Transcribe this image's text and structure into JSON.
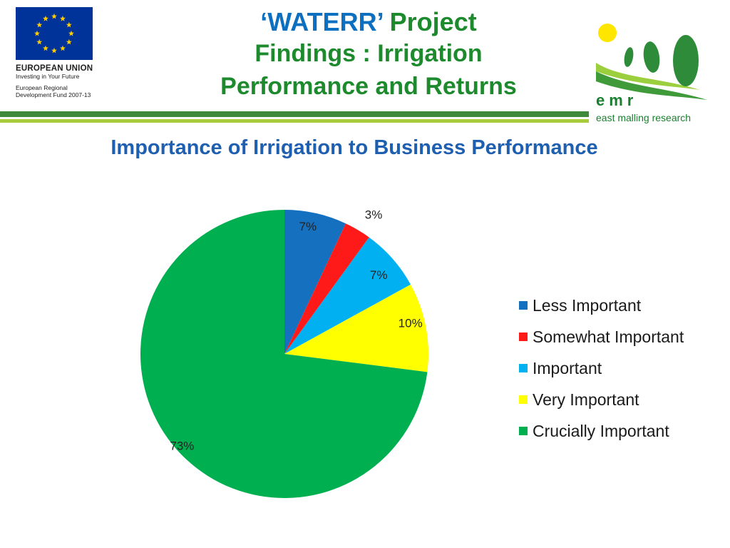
{
  "header": {
    "title_quote": "‘WATERR’",
    "title_word": "Project",
    "subtitle_line1": "Findings : Irrigation",
    "subtitle_line2": "Performance and Returns"
  },
  "eu_logo": {
    "name": "EUROPEAN UNION",
    "tagline": "Investing in Your Future",
    "fund_line1": "European Regional",
    "fund_line2": "Development Fund 2007-13"
  },
  "emr_logo": {
    "abbr": "emr",
    "name": "east malling research"
  },
  "chart_data": {
    "type": "pie",
    "title": "Importance of Irrigation to Business Performance",
    "categories": [
      "Less Important",
      "Somewhat Important",
      "Important",
      "Very Important",
      "Crucially Important"
    ],
    "values": [
      7,
      3,
      7,
      10,
      73
    ],
    "value_labels": [
      "7%",
      "3%",
      "7%",
      "10%",
      "73%"
    ],
    "colors": [
      "#1570c0",
      "#ff1a1a",
      "#00b0f0",
      "#ffff00",
      "#00b050"
    ],
    "start_angle_deg": 0,
    "direction": "clockwise",
    "legend_position": "right"
  }
}
